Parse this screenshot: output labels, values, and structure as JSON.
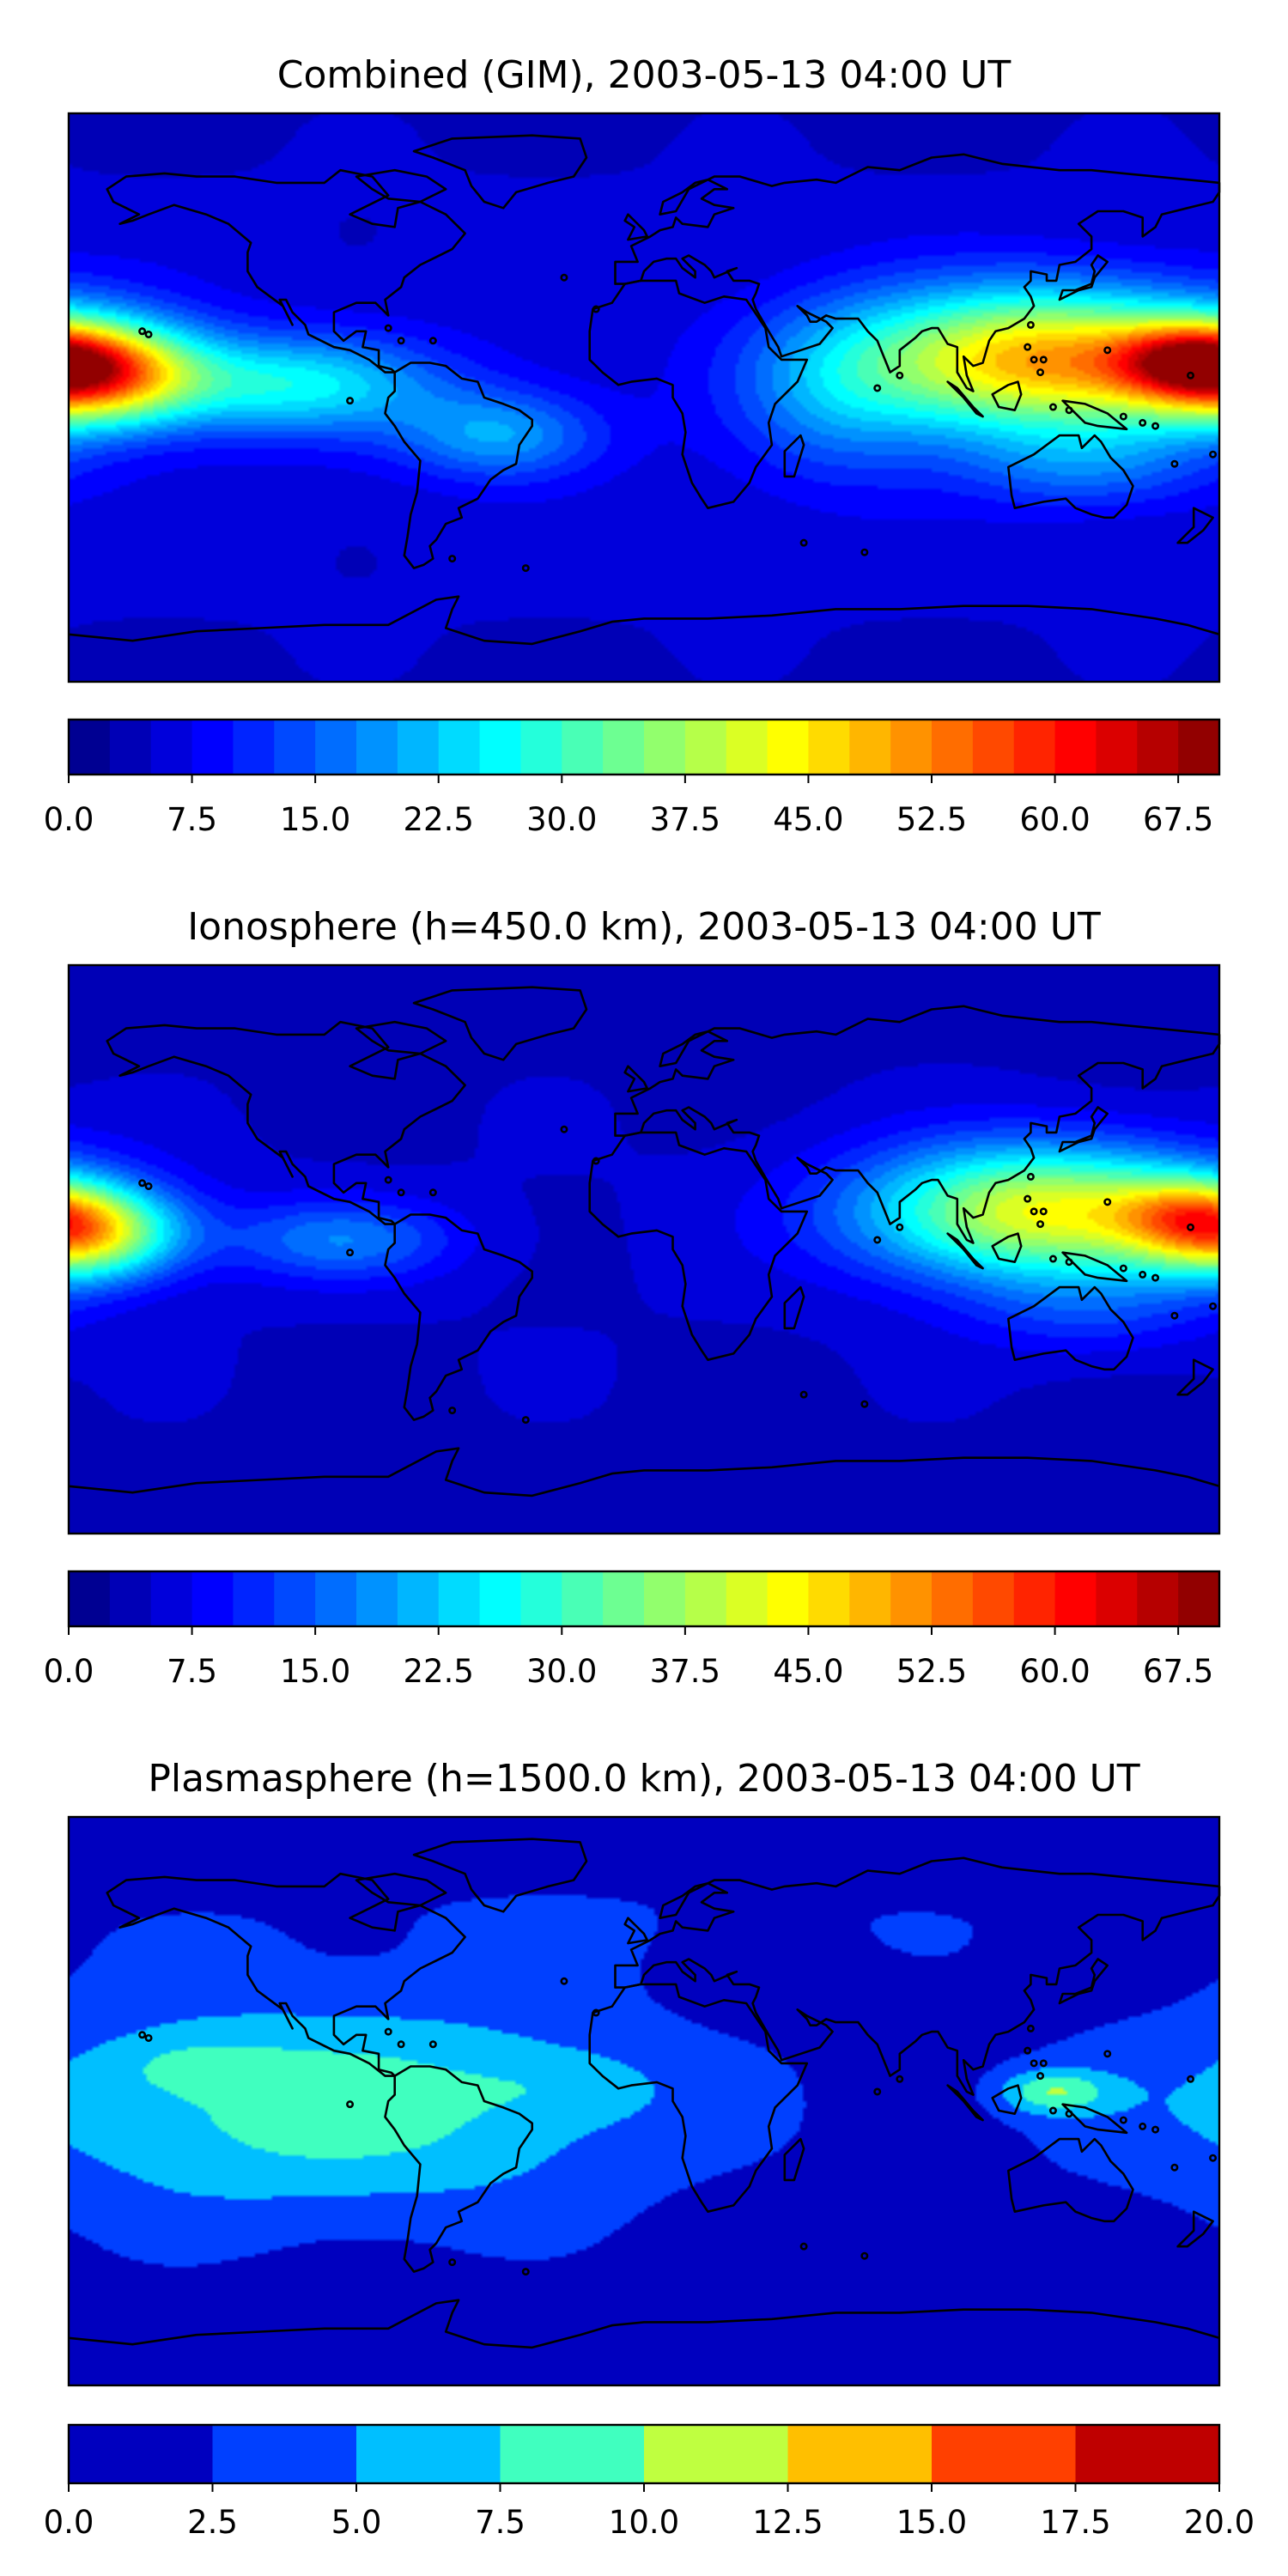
{
  "chart_data": [
    {
      "type": "heatmap",
      "title": "Combined (GIM), 2003-05-13 04:00 UT",
      "field": "ionosphere-wide",
      "colorbar": {
        "min": 0,
        "max": 70,
        "levels": 28,
        "colormap": "jet",
        "tick_values": [
          0,
          7.5,
          15,
          22.5,
          30,
          37.5,
          45,
          52.5,
          60,
          67.5
        ],
        "tick_labels": [
          "0.0",
          "7.5",
          "15.0",
          "22.5",
          "30.0",
          "37.5",
          "45.0",
          "52.5",
          "60.0",
          "67.5"
        ]
      },
      "features": [
        {
          "lon": -172,
          "lat": 8,
          "amp": 42,
          "sx": 22,
          "sy": 11
        },
        {
          "lon": -110,
          "lat": 4,
          "amp": 20,
          "sx": 32,
          "sy": 11
        },
        {
          "lon": -45,
          "lat": -12,
          "amp": 14,
          "sx": 22,
          "sy": 10
        },
        {
          "lon": 125,
          "lat": 12,
          "amp": 44,
          "sx": 42,
          "sy": 16
        },
        {
          "lon": 170,
          "lat": 12,
          "amp": 20,
          "sx": 16,
          "sy": 8
        },
        {
          "lon": 138,
          "lat": -22,
          "amp": 9,
          "sx": 28,
          "sy": 10
        },
        {
          "lon": 60,
          "lat": 0,
          "amp": 9,
          "sx": 22,
          "sy": 20
        }
      ],
      "base": 6
    },
    {
      "type": "heatmap",
      "title": "Ionosphere  (h=450.0 km), 2003-05-13 04:00 UT",
      "field": "ionosphere",
      "colorbar": {
        "min": 0,
        "max": 70,
        "levels": 28,
        "colormap": "jet",
        "tick_values": [
          0,
          7.5,
          15,
          22.5,
          30,
          37.5,
          45,
          52.5,
          60,
          67.5
        ],
        "tick_labels": [
          "0.0",
          "7.5",
          "15.0",
          "22.5",
          "30.0",
          "37.5",
          "45.0",
          "52.5",
          "60.0",
          "67.5"
        ]
      },
      "features": [
        {
          "lon": -175,
          "lat": 5,
          "amp": 34,
          "sx": 20,
          "sy": 10
        },
        {
          "lon": -95,
          "lat": 3,
          "amp": 12,
          "sx": 25,
          "sy": 9
        },
        {
          "lon": 125,
          "lat": 12,
          "amp": 38,
          "sx": 40,
          "sy": 15
        },
        {
          "lon": 170,
          "lat": 12,
          "amp": 14,
          "sx": 16,
          "sy": 8
        },
        {
          "lon": 140,
          "lat": -20,
          "amp": 6,
          "sx": 28,
          "sy": 10
        }
      ],
      "base": 5
    },
    {
      "type": "heatmap",
      "title": "Plasmasphere (h=1500.0 km), 2003-05-13 04:00 UT",
      "field": "plasmasphere",
      "colorbar": {
        "min": 0,
        "max": 20,
        "levels": 8,
        "colormap": "jet",
        "tick_values": [
          0,
          2.5,
          5,
          7.5,
          10,
          12.5,
          15,
          17.5,
          20
        ],
        "tick_labels": [
          "0.0",
          "2.5",
          "5.0",
          "7.5",
          "10.0",
          "12.5",
          "15.0",
          "17.5",
          "20.0"
        ]
      },
      "features": [
        {
          "lon": -100,
          "lat": -2,
          "amp": 7.5,
          "sx": 75,
          "sy": 26
        },
        {
          "lon": -140,
          "lat": 11,
          "amp": 2.6,
          "sx": 18,
          "sy": 6
        },
        {
          "lon": -25,
          "lat": 5,
          "amp": 2.0,
          "sx": 22,
          "sy": 8
        },
        {
          "lon": 128,
          "lat": 3,
          "amp": 7.2,
          "sx": 12,
          "sy": 5
        },
        {
          "lon": 0,
          "lat": 60,
          "amp": 1.5,
          "sx": 140,
          "sy": 14
        },
        {
          "lon": -30,
          "lat": 82,
          "amp": 1.0,
          "sx": 40,
          "sy": 6
        }
      ],
      "base": 1.2
    }
  ]
}
